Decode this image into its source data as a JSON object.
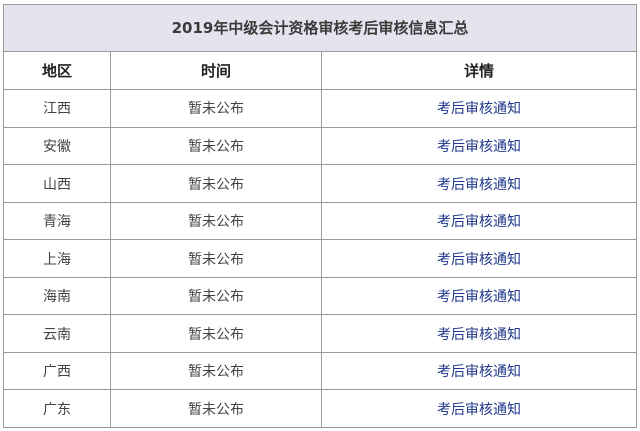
{
  "title": "2019年中级会计资格审核考后审核信息汇总",
  "headers": [
    "地区",
    "时间",
    "详情"
  ],
  "rows": [
    {
      "region": "江西",
      "time": "暂未公布",
      "detail": "考后审核通知"
    },
    {
      "region": "安徽",
      "time": "暂未公布",
      "detail": "考后审核通知"
    },
    {
      "region": "山西",
      "time": "暂未公布",
      "detail": "考后审核通知"
    },
    {
      "region": "青海",
      "time": "暂未公布",
      "detail": "考后审核通知"
    },
    {
      "region": "上海",
      "time": "暂未公布",
      "detail": "考后审核通知"
    },
    {
      "region": "海南",
      "time": "暂未公布",
      "detail": "考后审核通知"
    },
    {
      "region": "云南",
      "time": "暂未公布",
      "detail": "考后审核通知"
    },
    {
      "region": "广西",
      "time": "暂未公布",
      "detail": "考后审核通知"
    },
    {
      "region": "广东",
      "time": "暂未公布",
      "detail": "考后审核通知"
    }
  ],
  "colors": {
    "link": "#20398c",
    "title_bg": "#e5e4ee"
  }
}
